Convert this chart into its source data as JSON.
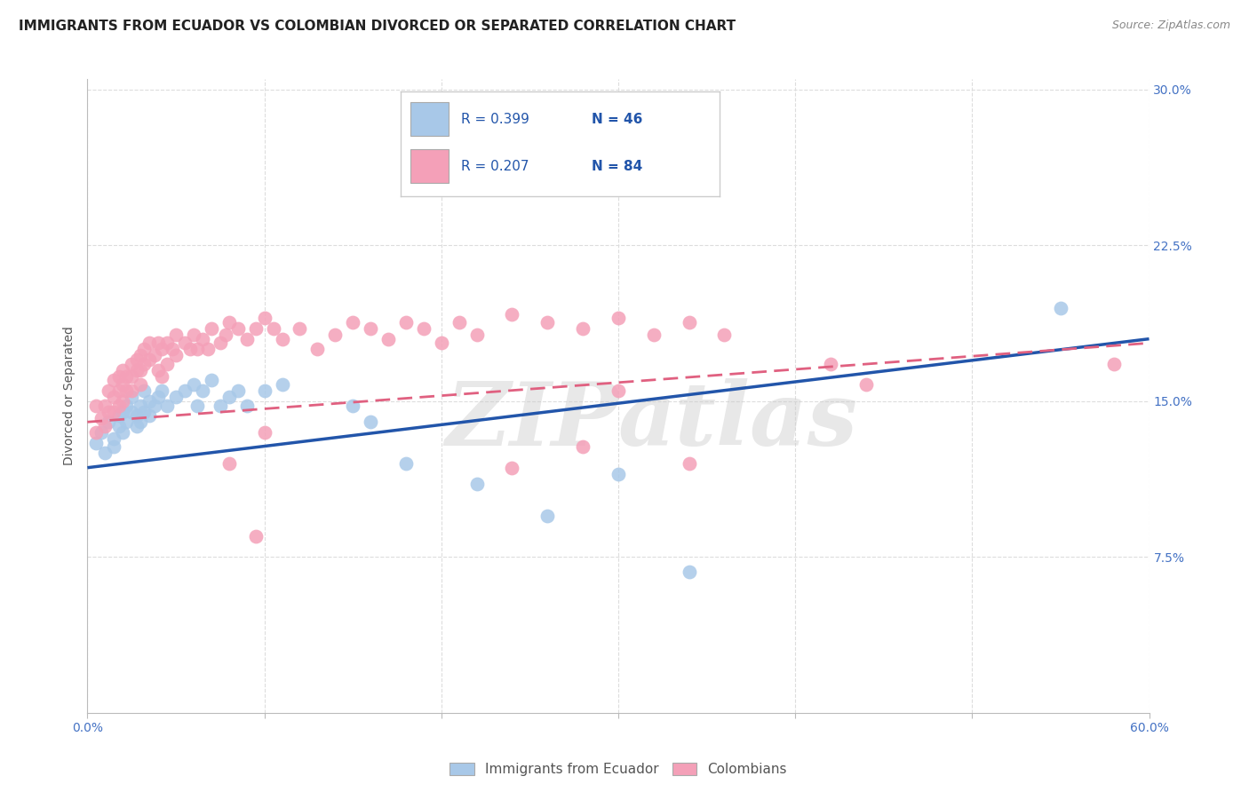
{
  "title": "IMMIGRANTS FROM ECUADOR VS COLOMBIAN DIVORCED OR SEPARATED CORRELATION CHART",
  "source": "Source: ZipAtlas.com",
  "ylabel": "Divorced or Separated",
  "legend_label_1": "Immigrants from Ecuador",
  "legend_label_2": "Colombians",
  "r1": 0.399,
  "n1": 46,
  "r2": 0.207,
  "n2": 84,
  "color1": "#a8c8e8",
  "color2": "#f4a0b8",
  "line1_color": "#2255aa",
  "line2_color": "#e06080",
  "x_min": 0.0,
  "x_max": 0.6,
  "y_min": 0.0,
  "y_max": 0.3,
  "watermark": "ZIPatlas",
  "scatter1_x": [
    0.005,
    0.008,
    0.01,
    0.012,
    0.015,
    0.015,
    0.018,
    0.018,
    0.02,
    0.02,
    0.022,
    0.022,
    0.025,
    0.025,
    0.028,
    0.028,
    0.03,
    0.03,
    0.032,
    0.032,
    0.035,
    0.035,
    0.038,
    0.04,
    0.042,
    0.045,
    0.05,
    0.055,
    0.06,
    0.062,
    0.065,
    0.07,
    0.075,
    0.08,
    0.085,
    0.09,
    0.1,
    0.11,
    0.15,
    0.16,
    0.18,
    0.22,
    0.26,
    0.3,
    0.34,
    0.55
  ],
  "scatter1_y": [
    0.13,
    0.135,
    0.125,
    0.14,
    0.132,
    0.128,
    0.138,
    0.143,
    0.145,
    0.135,
    0.14,
    0.148,
    0.152,
    0.145,
    0.138,
    0.143,
    0.148,
    0.14,
    0.145,
    0.155,
    0.15,
    0.143,
    0.148,
    0.152,
    0.155,
    0.148,
    0.152,
    0.155,
    0.158,
    0.148,
    0.155,
    0.16,
    0.148,
    0.152,
    0.155,
    0.148,
    0.155,
    0.158,
    0.148,
    0.14,
    0.12,
    0.11,
    0.095,
    0.115,
    0.068,
    0.195
  ],
  "scatter2_x": [
    0.005,
    0.005,
    0.008,
    0.01,
    0.01,
    0.012,
    0.012,
    0.015,
    0.015,
    0.015,
    0.018,
    0.018,
    0.018,
    0.02,
    0.02,
    0.02,
    0.022,
    0.022,
    0.025,
    0.025,
    0.025,
    0.028,
    0.028,
    0.03,
    0.03,
    0.03,
    0.032,
    0.032,
    0.035,
    0.035,
    0.038,
    0.04,
    0.04,
    0.042,
    0.042,
    0.045,
    0.045,
    0.048,
    0.05,
    0.05,
    0.055,
    0.058,
    0.06,
    0.062,
    0.065,
    0.068,
    0.07,
    0.075,
    0.078,
    0.08,
    0.085,
    0.09,
    0.095,
    0.1,
    0.105,
    0.11,
    0.12,
    0.13,
    0.14,
    0.15,
    0.16,
    0.17,
    0.18,
    0.19,
    0.2,
    0.21,
    0.22,
    0.24,
    0.26,
    0.28,
    0.3,
    0.32,
    0.34,
    0.36,
    0.3,
    0.28,
    0.42,
    0.44,
    0.34,
    0.1,
    0.24,
    0.08,
    0.095,
    0.58
  ],
  "scatter2_y": [
    0.135,
    0.148,
    0.142,
    0.138,
    0.148,
    0.145,
    0.155,
    0.152,
    0.145,
    0.16,
    0.162,
    0.155,
    0.148,
    0.165,
    0.158,
    0.15,
    0.162,
    0.155,
    0.168,
    0.162,
    0.155,
    0.17,
    0.165,
    0.172,
    0.165,
    0.158,
    0.175,
    0.168,
    0.178,
    0.17,
    0.172,
    0.178,
    0.165,
    0.175,
    0.162,
    0.178,
    0.168,
    0.175,
    0.182,
    0.172,
    0.178,
    0.175,
    0.182,
    0.175,
    0.18,
    0.175,
    0.185,
    0.178,
    0.182,
    0.188,
    0.185,
    0.18,
    0.185,
    0.19,
    0.185,
    0.18,
    0.185,
    0.175,
    0.182,
    0.188,
    0.185,
    0.18,
    0.188,
    0.185,
    0.178,
    0.188,
    0.182,
    0.192,
    0.188,
    0.185,
    0.19,
    0.182,
    0.188,
    0.182,
    0.155,
    0.128,
    0.168,
    0.158,
    0.12,
    0.135,
    0.118,
    0.12,
    0.085,
    0.168
  ],
  "grid_color": "#dddddd",
  "background_color": "#ffffff",
  "title_fontsize": 11,
  "tick_fontsize": 10,
  "legend_text_color": "#2255aa",
  "axis_tick_color": "#4472c4",
  "line1_y0": 0.118,
  "line1_y1": 0.18,
  "line2_y0": 0.14,
  "line2_y1": 0.178
}
